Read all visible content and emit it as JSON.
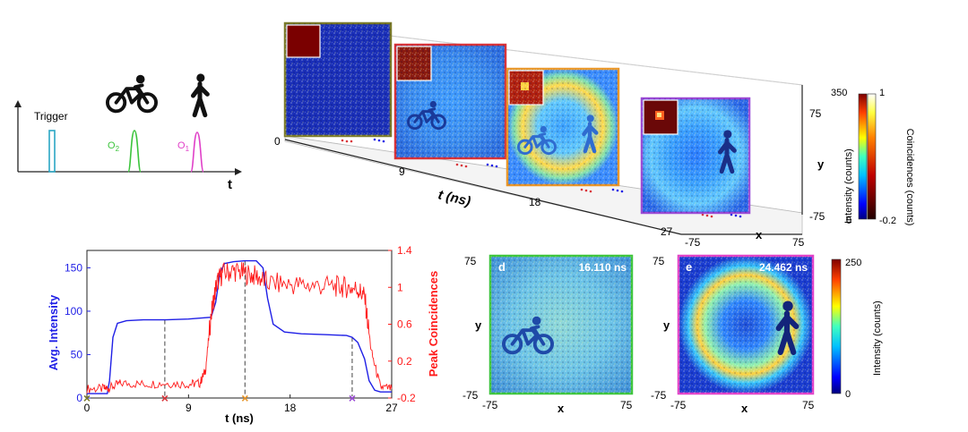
{
  "colors": {
    "trigger": "#2aa6c4",
    "o2": "#3cc43c",
    "o1": "#e040c8",
    "intensity": "#1f1fe6",
    "coincidence": "#ff1a1a",
    "frame0": "#7a7a2a",
    "frame1": "#d9343a",
    "frame2": "#e8962a",
    "frame3": "#9a4ad6",
    "d_border": "#3cc43c",
    "e_border": "#e040c8"
  },
  "timing": {
    "trigger_label": "Trigger",
    "o2_label": "O",
    "o2_sub": "2",
    "o1_label": "O",
    "o1_sub": "1",
    "t_label": "t",
    "cyclist_icon": "cyclist-icon",
    "walker_icon": "walker-icon"
  },
  "volume": {
    "t_axis_label": "t (ns)",
    "t_ticks": [
      "0",
      "9",
      "18",
      "27"
    ],
    "x_axis_label": "x",
    "x_ticks": [
      "-75",
      "75"
    ],
    "y_axis_label": "y",
    "y_ticks": [
      "75",
      "-75"
    ],
    "colorbar_intensity": {
      "label": "Intensity (counts)",
      "max": "350",
      "min": "0"
    },
    "colorbar_coinc": {
      "label": "Coincidences (counts)",
      "max": "1",
      "min": "-0.2"
    }
  },
  "chart_data": [
    {
      "type": "line",
      "title": "",
      "xlabel": "t (ns)",
      "ylabel": "Avg. Intensity",
      "y2label": "Peak Coincidences",
      "xlim": [
        0,
        27
      ],
      "ylim": [
        0,
        170
      ],
      "y2lim": [
        -0.2,
        1.4
      ],
      "x_ticks": [
        "0",
        "9",
        "18",
        "27"
      ],
      "y_ticks": [
        "0",
        "50",
        "100",
        "150"
      ],
      "y2_ticks": [
        "-0.2",
        "0.2",
        "0.6",
        "1",
        "1.4"
      ],
      "series": [
        {
          "name": "Avg. Intensity",
          "axis": "left",
          "x": [
            0,
            1.8,
            2.0,
            2.3,
            2.7,
            3.5,
            5,
            7,
            9,
            10,
            11,
            11.4,
            11.8,
            12.2,
            13,
            14,
            15,
            15.6,
            16,
            16.5,
            17.5,
            19,
            21,
            23,
            23.5,
            24,
            24.6,
            25.0,
            25.5,
            26,
            27
          ],
          "y": [
            5,
            5,
            20,
            70,
            86,
            89,
            90,
            90,
            91,
            92,
            93,
            110,
            145,
            155,
            157,
            158,
            158,
            150,
            115,
            85,
            76,
            74,
            73,
            72,
            70,
            64,
            45,
            20,
            9,
            7,
            7
          ]
        },
        {
          "name": "Peak Coincidences",
          "axis": "right",
          "x": [
            0,
            1.5,
            2.0,
            3,
            5,
            7,
            9,
            10,
            10.5,
            11,
            11.5,
            12,
            13,
            14,
            15,
            16,
            18,
            20,
            22,
            23,
            24,
            24.6,
            25.2,
            26,
            27
          ],
          "y": [
            -0.1,
            -0.1,
            -0.09,
            -0.04,
            -0.05,
            -0.04,
            -0.05,
            -0.04,
            0.1,
            0.7,
            1.05,
            1.15,
            1.18,
            1.15,
            1.12,
            1.05,
            1.03,
            1.02,
            1.01,
            1.0,
            0.98,
            0.9,
            0.3,
            -0.08,
            -0.1
          ]
        }
      ],
      "markers": [
        {
          "t": 0,
          "label": "×",
          "color": "#7a7a2a"
        },
        {
          "t": 6.9,
          "label": "×",
          "color": "#d9343a"
        },
        {
          "t": 14.0,
          "label": "×",
          "color": "#e8962a"
        },
        {
          "t": 23.5,
          "label": "×",
          "color": "#9a4ad6"
        }
      ]
    }
  ],
  "panel_d": {
    "letter": "d",
    "time": "16.110 ns",
    "x_label": "x",
    "y_label": "y",
    "x_ticks": [
      "-75",
      "75"
    ],
    "y_ticks": [
      "75",
      "-75"
    ]
  },
  "panel_e": {
    "letter": "e",
    "time": "24.462 ns",
    "x_label": "x",
    "y_label": "y",
    "x_ticks": [
      "-75",
      "75"
    ],
    "y_ticks": [
      "75",
      "-75"
    ],
    "colorbar": {
      "label": "Intensity (counts)",
      "max": "250",
      "min": "0"
    }
  }
}
